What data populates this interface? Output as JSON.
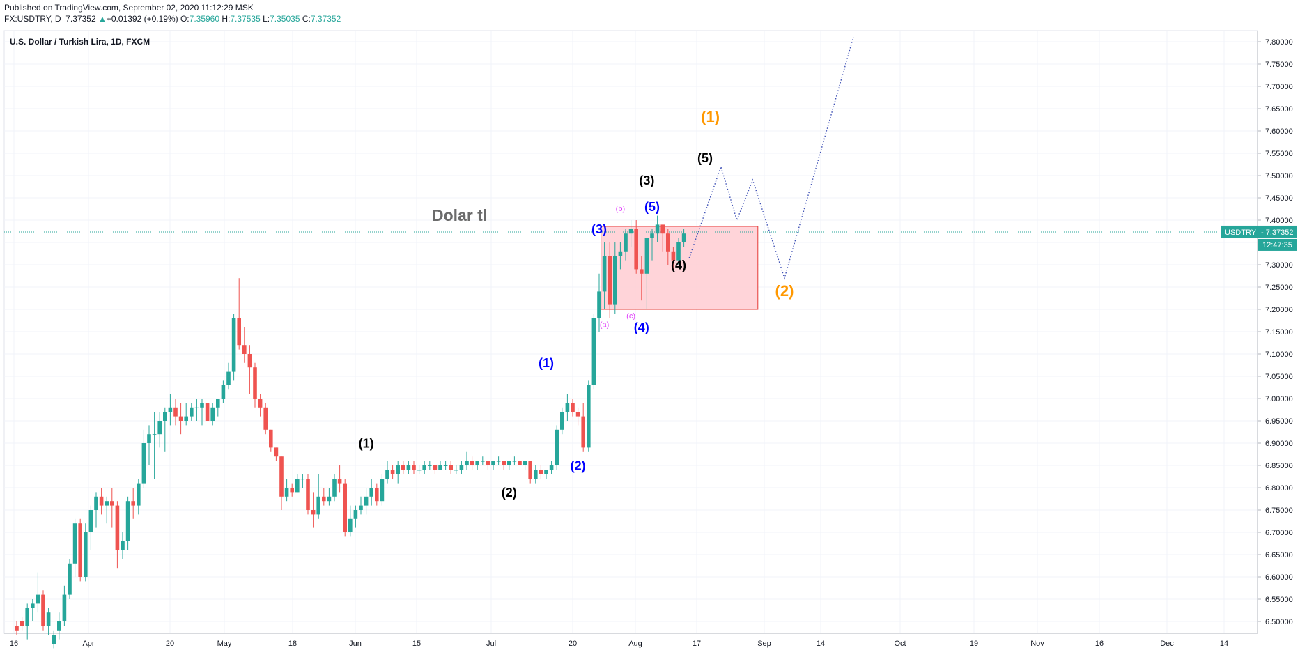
{
  "header": {
    "published": "Published on TradingView.com, September 02, 2020 11:12:29 MSK",
    "symbol": "FX:USDTRY, D",
    "price": "7.37352",
    "change_arrow": "▲",
    "change": "+0.01392 (+0.19%)",
    "open_label": "O:",
    "open": "7.35960",
    "high_label": "H:",
    "high": "7.37535",
    "low_label": "L:",
    "low": "7.35035",
    "close_label": "C:",
    "close": "7.37352"
  },
  "colors": {
    "up": "#26a69a",
    "down": "#ef5350",
    "grid": "#f0f3fa",
    "wave_black": "#000000",
    "wave_blue": "#0000ff",
    "wave_orange": "#ff9800",
    "wave_magenta": "#e040fb",
    "projection": "#3f51b5",
    "box_fill": "#ffcdd2",
    "box_stroke": "#e53935"
  },
  "chart_data": {
    "type": "candlestick",
    "title": "U.S. Dollar / Turkish Lira, 1D, FXCM",
    "watermark_text": "Dolar tl",
    "x_labels": [
      "16",
      "Apr",
      "20",
      "May",
      "18",
      "Jun",
      "15",
      "Jul",
      "20",
      "Aug",
      "17",
      "Sep",
      "14",
      "Oct",
      "19",
      "Nov",
      "16",
      "Dec",
      "14"
    ],
    "y_ticks": [
      "7.80000",
      "7.75000",
      "7.70000",
      "7.65000",
      "7.60000",
      "7.55000",
      "7.50000",
      "7.45000",
      "7.40000",
      "7.35000",
      "7.30000",
      "7.25000",
      "7.20000",
      "7.15000",
      "7.10000",
      "7.05000",
      "7.00000",
      "6.95000",
      "6.90000",
      "6.85000",
      "6.80000",
      "6.75000",
      "6.70000",
      "6.65000",
      "6.60000",
      "6.55000",
      "6.50000"
    ],
    "ylim": [
      6.48,
      7.82
    ],
    "last_price_label": "USDTRY",
    "last_price": "7.37352",
    "countdown": "12:47:35",
    "ohlc": [
      [
        6.49,
        6.5,
        6.47,
        6.48
      ],
      [
        6.5,
        6.51,
        6.48,
        6.49
      ],
      [
        6.49,
        6.54,
        6.46,
        6.53
      ],
      [
        6.53,
        6.55,
        6.5,
        6.54
      ],
      [
        6.54,
        6.61,
        6.52,
        6.56
      ],
      [
        6.56,
        6.57,
        6.48,
        6.49
      ],
      [
        6.49,
        6.53,
        6.47,
        6.52
      ],
      [
        6.45,
        6.48,
        6.44,
        6.47
      ],
      [
        6.48,
        6.52,
        6.46,
        6.5
      ],
      [
        6.5,
        6.58,
        6.49,
        6.56
      ],
      [
        6.56,
        6.64,
        6.55,
        6.63
      ],
      [
        6.63,
        6.73,
        6.6,
        6.72
      ],
      [
        6.72,
        6.73,
        6.59,
        6.6
      ],
      [
        6.6,
        6.72,
        6.59,
        6.7
      ],
      [
        6.7,
        6.76,
        6.66,
        6.75
      ],
      [
        6.75,
        6.79,
        6.71,
        6.78
      ],
      [
        6.78,
        6.8,
        6.74,
        6.76
      ],
      [
        6.76,
        6.78,
        6.72,
        6.77
      ],
      [
        6.77,
        6.8,
        6.71,
        6.76
      ],
      [
        6.76,
        6.77,
        6.62,
        6.66
      ],
      [
        6.66,
        6.7,
        6.64,
        6.68
      ],
      [
        6.68,
        6.78,
        6.66,
        6.77
      ],
      [
        6.77,
        6.8,
        6.73,
        6.76
      ],
      [
        6.76,
        6.82,
        6.74,
        6.81
      ],
      [
        6.81,
        6.93,
        6.8,
        6.9
      ],
      [
        6.9,
        6.94,
        6.85,
        6.92
      ],
      [
        6.92,
        6.97,
        6.82,
        6.92
      ],
      [
        6.92,
        6.97,
        6.89,
        6.95
      ],
      [
        6.95,
        6.98,
        6.88,
        6.97
      ],
      [
        6.97,
        7.01,
        6.94,
        6.98
      ],
      [
        6.98,
        7.0,
        6.94,
        6.96
      ],
      [
        6.96,
        6.99,
        6.92,
        6.95
      ],
      [
        6.95,
        6.99,
        6.94,
        6.96
      ],
      [
        6.96,
        6.99,
        6.95,
        6.98
      ],
      [
        6.98,
        7.0,
        6.95,
        6.98
      ],
      [
        6.98,
        7.0,
        6.94,
        6.99
      ],
      [
        6.99,
        6.99,
        6.95,
        6.95
      ],
      [
        6.95,
        6.99,
        6.94,
        6.98
      ],
      [
        6.98,
        7.0,
        6.96,
        7.0
      ],
      [
        7.0,
        7.04,
        6.99,
        7.03
      ],
      [
        7.03,
        7.08,
        7.02,
        7.06
      ],
      [
        7.06,
        7.19,
        7.04,
        7.18
      ],
      [
        7.18,
        7.27,
        7.11,
        7.12
      ],
      [
        7.12,
        7.16,
        7.08,
        7.1
      ],
      [
        7.1,
        7.12,
        7.01,
        7.07
      ],
      [
        7.07,
        7.08,
        6.98,
        7.0
      ],
      [
        7.0,
        7.01,
        6.96,
        6.98
      ],
      [
        6.98,
        6.99,
        6.92,
        6.93
      ],
      [
        6.93,
        6.93,
        6.88,
        6.89
      ],
      [
        6.89,
        6.89,
        6.86,
        6.87
      ],
      [
        6.87,
        6.87,
        6.75,
        6.78
      ],
      [
        6.78,
        6.82,
        6.77,
        6.8
      ],
      [
        6.8,
        6.81,
        6.78,
        6.79
      ],
      [
        6.79,
        6.83,
        6.79,
        6.82
      ],
      [
        6.82,
        6.83,
        6.8,
        6.82
      ],
      [
        6.82,
        6.83,
        6.74,
        6.75
      ],
      [
        6.75,
        6.79,
        6.71,
        6.74
      ],
      [
        6.74,
        6.83,
        6.73,
        6.78
      ],
      [
        6.78,
        6.8,
        6.76,
        6.77
      ],
      [
        6.77,
        6.8,
        6.76,
        6.78
      ],
      [
        6.78,
        6.83,
        6.77,
        6.82
      ],
      [
        6.82,
        6.85,
        6.79,
        6.81
      ],
      [
        6.81,
        6.82,
        6.69,
        6.7
      ],
      [
        6.7,
        6.76,
        6.69,
        6.73
      ],
      [
        6.73,
        6.76,
        6.71,
        6.75
      ],
      [
        6.75,
        6.78,
        6.74,
        6.76
      ],
      [
        6.76,
        6.8,
        6.74,
        6.78
      ],
      [
        6.78,
        6.82,
        6.76,
        6.8
      ],
      [
        6.8,
        6.81,
        6.76,
        6.77
      ],
      [
        6.77,
        6.83,
        6.76,
        6.82
      ],
      [
        6.82,
        6.86,
        6.81,
        6.84
      ],
      [
        6.84,
        6.85,
        6.82,
        6.83
      ],
      [
        6.83,
        6.86,
        6.81,
        6.85
      ],
      [
        6.85,
        6.86,
        6.83,
        6.84
      ],
      [
        6.84,
        6.86,
        6.83,
        6.85
      ],
      [
        6.85,
        6.86,
        6.83,
        6.84
      ],
      [
        6.84,
        6.85,
        6.83,
        6.84
      ],
      [
        6.84,
        6.86,
        6.83,
        6.85
      ],
      [
        6.85,
        6.86,
        6.84,
        6.85
      ],
      [
        6.85,
        6.85,
        6.83,
        6.84
      ],
      [
        6.84,
        6.86,
        6.84,
        6.85
      ],
      [
        6.85,
        6.86,
        6.84,
        6.85
      ],
      [
        6.85,
        6.86,
        6.83,
        6.84
      ],
      [
        6.84,
        6.85,
        6.83,
        6.84
      ],
      [
        6.84,
        6.86,
        6.83,
        6.85
      ],
      [
        6.85,
        6.88,
        6.84,
        6.86
      ],
      [
        6.86,
        6.87,
        6.84,
        6.85
      ],
      [
        6.85,
        6.86,
        6.84,
        6.86
      ],
      [
        6.86,
        6.87,
        6.85,
        6.86
      ],
      [
        6.86,
        6.86,
        6.84,
        6.85
      ],
      [
        6.85,
        6.86,
        6.84,
        6.86
      ],
      [
        6.86,
        6.87,
        6.85,
        6.86
      ],
      [
        6.86,
        6.86,
        6.84,
        6.85
      ],
      [
        6.85,
        6.86,
        6.84,
        6.86
      ],
      [
        6.86,
        6.87,
        6.85,
        6.86
      ],
      [
        6.86,
        6.86,
        6.85,
        6.85
      ],
      [
        6.85,
        6.86,
        6.84,
        6.86
      ],
      [
        6.86,
        6.86,
        6.81,
        6.82
      ],
      [
        6.82,
        6.85,
        6.81,
        6.84
      ],
      [
        6.84,
        6.85,
        6.82,
        6.83
      ],
      [
        6.83,
        6.84,
        6.82,
        6.84
      ],
      [
        6.84,
        6.86,
        6.83,
        6.85
      ],
      [
        6.85,
        6.94,
        6.84,
        6.93
      ],
      [
        6.93,
        6.98,
        6.92,
        6.97
      ],
      [
        6.97,
        7.01,
        6.95,
        6.99
      ],
      [
        6.99,
        7.0,
        6.96,
        6.97
      ],
      [
        6.97,
        6.98,
        6.94,
        6.96
      ],
      [
        6.96,
        6.99,
        6.88,
        6.89
      ],
      [
        6.89,
        7.04,
        6.88,
        7.03
      ],
      [
        7.03,
        7.19,
        7.02,
        7.18
      ],
      [
        7.18,
        7.28,
        7.15,
        7.24
      ],
      [
        7.24,
        7.35,
        7.2,
        7.32
      ],
      [
        7.32,
        7.35,
        7.18,
        7.21
      ],
      [
        7.21,
        7.35,
        7.19,
        7.32
      ],
      [
        7.32,
        7.35,
        7.29,
        7.33
      ],
      [
        7.33,
        7.38,
        7.31,
        7.37
      ],
      [
        7.37,
        7.4,
        7.34,
        7.38
      ],
      [
        7.38,
        7.4,
        7.28,
        7.29
      ],
      [
        7.29,
        7.32,
        7.22,
        7.28
      ],
      [
        7.28,
        7.36,
        7.2,
        7.36
      ],
      [
        7.36,
        7.38,
        7.31,
        7.37
      ],
      [
        7.37,
        7.41,
        7.35,
        7.39
      ],
      [
        7.39,
        7.39,
        7.33,
        7.37
      ],
      [
        7.37,
        7.38,
        7.3,
        7.33
      ],
      [
        7.33,
        7.34,
        7.29,
        7.31
      ],
      [
        7.31,
        7.36,
        7.3,
        7.35
      ],
      [
        7.35,
        7.38,
        7.34,
        7.37
      ]
    ],
    "rect_zone": {
      "from_index": 111,
      "to_index": 133,
      "top": 7.386,
      "bottom": 7.2
    },
    "wave_labels": [
      {
        "text": "(1)",
        "i": 66,
        "p": 6.89,
        "color": "black"
      },
      {
        "text": "(2)",
        "i": 93,
        "p": 6.78,
        "color": "black"
      },
      {
        "text": "(1)",
        "i": 100,
        "p": 7.07,
        "color": "blue"
      },
      {
        "text": "(2)",
        "i": 106,
        "p": 6.84,
        "color": "blue"
      },
      {
        "text": "(3)",
        "i": 110,
        "p": 7.37,
        "color": "blue"
      },
      {
        "text": "(4)",
        "i": 118,
        "p": 7.15,
        "color": "blue"
      },
      {
        "text": "(5)",
        "i": 120,
        "p": 7.42,
        "color": "blue"
      },
      {
        "text": "(3)",
        "i": 119,
        "p": 7.48,
        "color": "black"
      },
      {
        "text": "(4)",
        "i": 125,
        "p": 7.29,
        "color": "black"
      },
      {
        "text": "(5)",
        "i": 130,
        "p": 7.53,
        "color": "black"
      },
      {
        "text": "(1)",
        "i": 131,
        "p": 7.62,
        "color": "orange"
      },
      {
        "text": "(2)",
        "i": 145,
        "p": 7.23,
        "color": "orange"
      },
      {
        "text": "(a)",
        "i": 111,
        "p": 7.16,
        "color": "magenta",
        "small": true
      },
      {
        "text": "(b)",
        "i": 114,
        "p": 7.42,
        "color": "magenta",
        "small": true
      },
      {
        "text": "(c)",
        "i": 116,
        "p": 7.18,
        "color": "magenta",
        "small": true
      }
    ],
    "projection_path": [
      [
        127,
        7.315
      ],
      [
        133,
        7.52
      ],
      [
        136,
        7.4
      ],
      [
        139,
        7.49
      ],
      [
        145,
        7.27
      ],
      [
        158,
        7.81
      ]
    ]
  }
}
